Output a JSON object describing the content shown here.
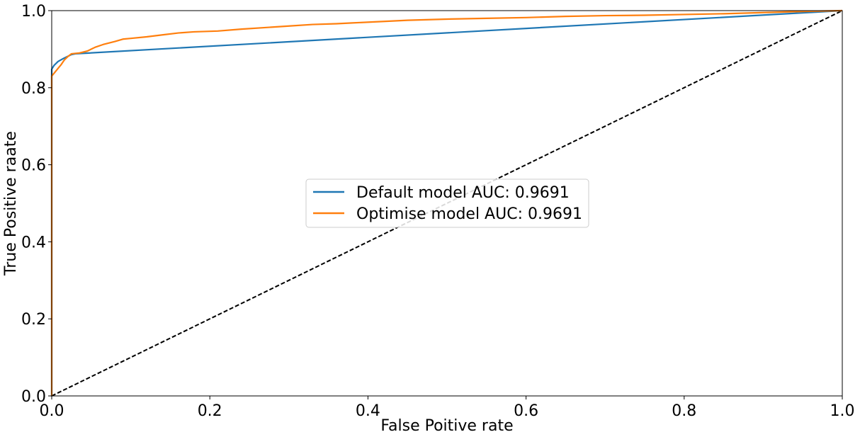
{
  "chart_data": {
    "type": "line",
    "title": "",
    "xlabel": "False Poitive rate",
    "ylabel": "True Positive raate",
    "xlim": [
      0,
      1
    ],
    "ylim": [
      0,
      1
    ],
    "xticks": [
      0.0,
      0.2,
      0.4,
      0.6,
      0.8,
      1.0
    ],
    "xtick_labels": [
      "0.0",
      "0.2",
      "0.4",
      "0.6",
      "0.8",
      "1.0"
    ],
    "yticks": [
      0.0,
      0.2,
      0.4,
      0.6,
      0.8,
      1.0
    ],
    "ytick_labels": [
      "0.0",
      "0.2",
      "0.4",
      "0.6",
      "0.8",
      "1.0"
    ],
    "grid": false,
    "legend_position": "center",
    "series": [
      {
        "name": "Default model AUC: 0.9691",
        "color": "#1f77b4",
        "style": "solid",
        "points": [
          [
            0,
            0
          ],
          [
            0,
            0.848
          ],
          [
            0.003,
            0.858
          ],
          [
            0.008,
            0.868
          ],
          [
            0.015,
            0.876
          ],
          [
            0.025,
            0.886
          ],
          [
            0.03,
            0.888
          ],
          [
            1,
            1
          ]
        ]
      },
      {
        "name": "Optimise model AUC: 0.9691",
        "color": "#ff7f0e",
        "style": "solid",
        "points": [
          [
            0,
            0
          ],
          [
            0,
            0.83
          ],
          [
            0.004,
            0.84
          ],
          [
            0.008,
            0.85
          ],
          [
            0.012,
            0.86
          ],
          [
            0.016,
            0.872
          ],
          [
            0.02,
            0.88
          ],
          [
            0.025,
            0.888
          ],
          [
            0.035,
            0.89
          ],
          [
            0.045,
            0.895
          ],
          [
            0.055,
            0.905
          ],
          [
            0.065,
            0.912
          ],
          [
            0.08,
            0.92
          ],
          [
            0.09,
            0.926
          ],
          [
            0.1,
            0.928
          ],
          [
            0.12,
            0.932
          ],
          [
            0.14,
            0.937
          ],
          [
            0.16,
            0.942
          ],
          [
            0.18,
            0.945
          ],
          [
            0.21,
            0.947
          ],
          [
            0.24,
            0.952
          ],
          [
            0.27,
            0.956
          ],
          [
            0.3,
            0.96
          ],
          [
            0.33,
            0.964
          ],
          [
            0.36,
            0.966
          ],
          [
            0.38,
            0.968
          ],
          [
            0.42,
            0.972
          ],
          [
            0.45,
            0.975
          ],
          [
            0.5,
            0.978
          ],
          [
            0.55,
            0.98
          ],
          [
            0.6,
            0.982
          ],
          [
            0.65,
            0.985
          ],
          [
            0.7,
            0.987
          ],
          [
            0.75,
            0.988
          ],
          [
            0.8,
            0.99
          ],
          [
            0.85,
            0.992
          ],
          [
            0.9,
            0.995
          ],
          [
            0.95,
            0.998
          ],
          [
            1,
            1
          ]
        ]
      },
      {
        "name": "",
        "color": "#000000",
        "style": "dashed",
        "points": [
          [
            0,
            0
          ],
          [
            1,
            1
          ]
        ]
      }
    ]
  }
}
